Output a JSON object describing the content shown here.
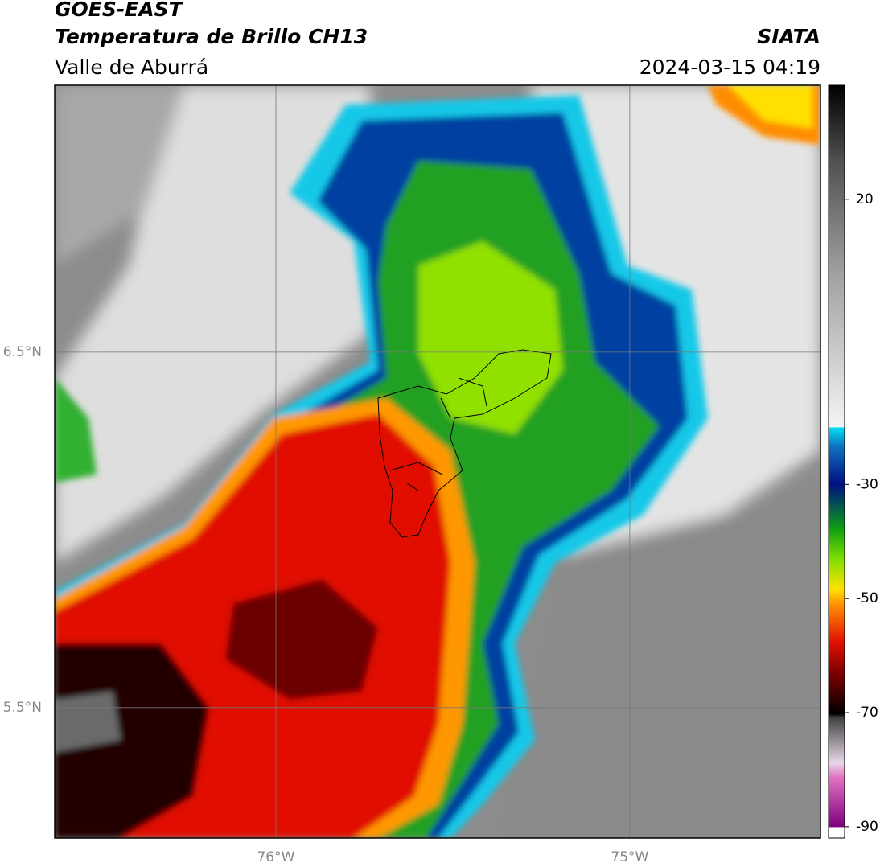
{
  "chart_data": {
    "type": "map",
    "title": "GOES-EAST",
    "subtitle": "Temperatura de Brillo CH13",
    "region": "Valle de Aburrá",
    "source": "SIATA",
    "datetime": "2024-03-15 04:19",
    "xlim": [
      -76.625,
      -74.461
    ],
    "ylim": [
      5.133,
      7.251
    ],
    "xticks": [
      {
        "value": -76,
        "label": "76°W"
      },
      {
        "value": -75,
        "label": "75°W"
      }
    ],
    "yticks": [
      {
        "value": 6.5,
        "label": "6.5°N"
      },
      {
        "value": 5.5,
        "label": "5.5°N"
      }
    ],
    "grid": true,
    "colorbar": {
      "lim": [
        -92,
        40
      ],
      "ticks": [
        20,
        -30,
        -50,
        -70,
        -90
      ]
    }
  }
}
